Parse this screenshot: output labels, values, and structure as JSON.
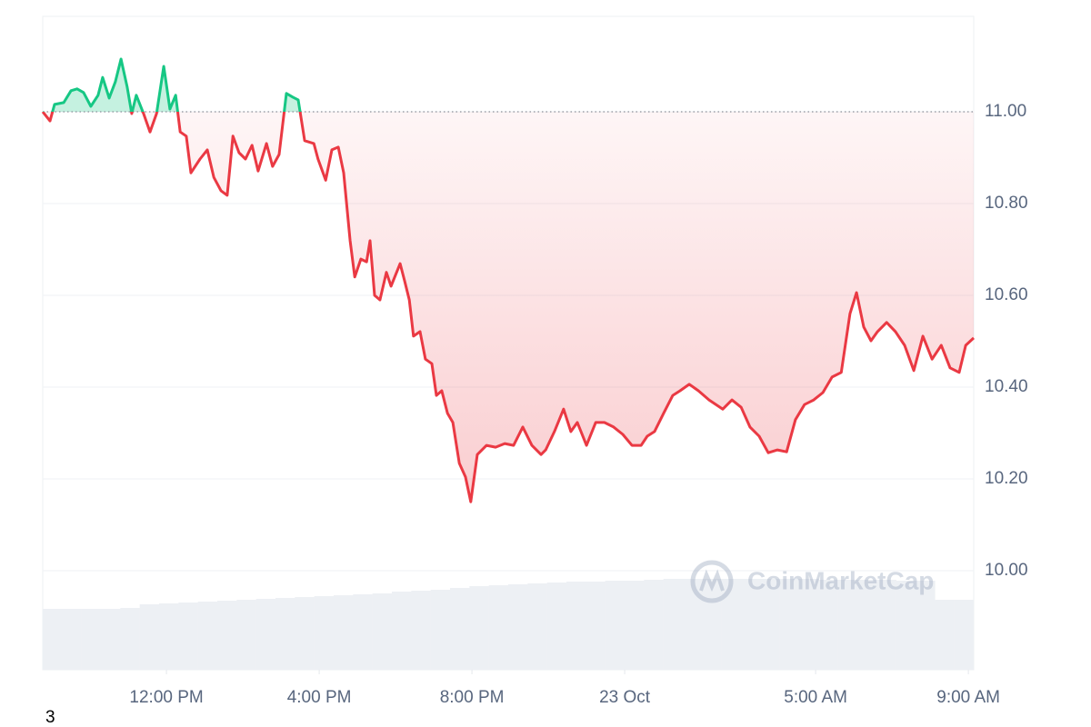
{
  "chart_data": {
    "type": "line",
    "baseline": 11.0,
    "up_color": "#16c784",
    "down_color": "#ea3943",
    "x": [
      8.76,
      8.95,
      9.07,
      9.31,
      9.5,
      9.66,
      9.83,
      10.02,
      10.21,
      10.33,
      10.5,
      10.66,
      10.81,
      10.97,
      11.09,
      11.21,
      11.4,
      11.57,
      11.74,
      11.93,
      12.09,
      12.24,
      12.36,
      12.52,
      12.64,
      12.88,
      13.07,
      13.24,
      13.43,
      13.59,
      13.74,
      13.9,
      14.07,
      14.24,
      14.4,
      14.62,
      14.78,
      14.95,
      15.14,
      15.31,
      15.45,
      15.62,
      15.86,
      15.97,
      16.17,
      16.33,
      16.5,
      16.64,
      16.81,
      16.93,
      17.09,
      17.24,
      17.33,
      17.45,
      17.59,
      17.76,
      17.88,
      18.12,
      18.24,
      18.36,
      18.47,
      18.64,
      18.78,
      18.95,
      19.07,
      19.21,
      19.36,
      19.5,
      19.67,
      19.83,
      19.97,
      20.14,
      20.38,
      20.62,
      20.86,
      21.09,
      21.33,
      21.57,
      21.81,
      21.93,
      22.16,
      22.4,
      22.59,
      22.76,
      23.0,
      23.24,
      23.47,
      23.71,
      23.95,
      24.19,
      24.43,
      24.59,
      24.78,
      25.02,
      25.26,
      25.45,
      25.69,
      25.93,
      26.21,
      26.57,
      26.81,
      27.05,
      27.28,
      27.52,
      27.76,
      28.0,
      28.24,
      28.47,
      28.71,
      28.95,
      29.19,
      29.43,
      29.67,
      29.9,
      30.07,
      30.26,
      30.45,
      30.62,
      30.86,
      31.09,
      31.33,
      31.57,
      31.81,
      32.05,
      32.29,
      32.52,
      32.76,
      32.93,
      33.14
    ],
    "values": [
      11.0,
      10.98,
      11.016,
      11.02,
      11.046,
      11.05,
      11.042,
      11.012,
      11.036,
      11.075,
      11.03,
      11.065,
      11.115,
      11.055,
      10.996,
      11.036,
      10.996,
      10.956,
      10.996,
      11.099,
      11.006,
      11.036,
      10.956,
      10.947,
      10.867,
      10.897,
      10.917,
      10.857,
      10.828,
      10.818,
      10.947,
      10.911,
      10.897,
      10.927,
      10.871,
      10.931,
      10.881,
      10.907,
      11.04,
      11.032,
      11.026,
      10.937,
      10.931,
      10.897,
      10.851,
      10.917,
      10.923,
      10.867,
      10.719,
      10.64,
      10.679,
      10.673,
      10.719,
      10.6,
      10.59,
      10.65,
      10.62,
      10.669,
      10.63,
      10.59,
      10.511,
      10.521,
      10.461,
      10.451,
      10.382,
      10.392,
      10.343,
      10.323,
      10.234,
      10.204,
      10.15,
      10.253,
      10.273,
      10.269,
      10.277,
      10.273,
      10.313,
      10.273,
      10.253,
      10.263,
      10.303,
      10.352,
      10.303,
      10.323,
      10.273,
      10.323,
      10.323,
      10.313,
      10.297,
      10.273,
      10.273,
      10.293,
      10.303,
      10.343,
      10.382,
      10.392,
      10.406,
      10.392,
      10.372,
      10.352,
      10.372,
      10.356,
      10.313,
      10.293,
      10.257,
      10.263,
      10.259,
      10.329,
      10.362,
      10.372,
      10.388,
      10.422,
      10.432,
      10.56,
      10.606,
      10.531,
      10.501,
      10.521,
      10.541,
      10.521,
      10.491,
      10.436,
      10.511,
      10.461,
      10.491,
      10.442,
      10.432,
      10.491,
      10.507
    ],
    "volume": {
      "color": "#edf0f4",
      "values": [
        67,
        67,
        67,
        67,
        68,
        72,
        73,
        74,
        75,
        76,
        77,
        78,
        79,
        80,
        81,
        82,
        83,
        84,
        86,
        87,
        88,
        90,
        92,
        93,
        94,
        95,
        96,
        97,
        97,
        98,
        98,
        99,
        100,
        100,
        100,
        100,
        100,
        100,
        100,
        100,
        99,
        99,
        99,
        99,
        98,
        98,
        77,
        77
      ]
    },
    "xlim": [
      8.76,
      33.14
    ],
    "xticks": [
      {
        "value": 12,
        "label": "12:00 PM"
      },
      {
        "value": 16,
        "label": "4:00 PM"
      },
      {
        "value": 20,
        "label": "8:00 PM"
      },
      {
        "value": 24,
        "label": "23 Oct"
      },
      {
        "value": 29,
        "label": "5:00 AM"
      },
      {
        "value": 33,
        "label": "9:00 AM"
      }
    ],
    "ylim": [
      9.784,
      11.208
    ],
    "yticks": [
      {
        "value": 10.0,
        "label": "10.00"
      },
      {
        "value": 10.2,
        "label": "10.20"
      },
      {
        "value": 10.4,
        "label": "10.40"
      },
      {
        "value": 10.6,
        "label": "10.60"
      },
      {
        "value": 10.8,
        "label": "10.80"
      },
      {
        "value": 11.0,
        "label": "11.00"
      }
    ],
    "grid": true,
    "watermark": "CoinMarketCap",
    "footnote": "3"
  }
}
